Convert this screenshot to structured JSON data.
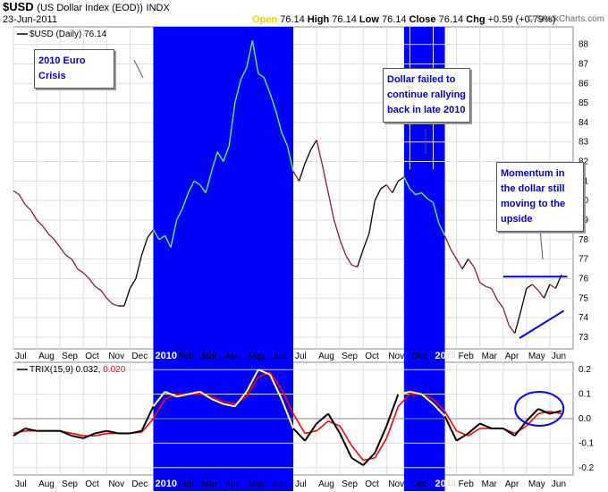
{
  "header": {
    "symbol": "$USD",
    "description": "(US Dollar Index (EOD))",
    "exchange": "INDX",
    "date": "23-Jun-2011",
    "open_label": "Open",
    "open_value": "76.14",
    "high_label": "High",
    "high_value": "76.14",
    "low_label": "Low",
    "low_value": "76.14",
    "close_label": "Close",
    "close_value": "76.14",
    "chg_label": "Chg",
    "chg_value": "+0.59 (+0.79%)",
    "brand": "© StockCharts.com"
  },
  "price_legend": "$USD (Daily) 76.14",
  "trix_legend": {
    "name": "TRIX(15,9) 0.032,",
    "signal": " 0.020"
  },
  "annotations": {
    "euro_crisis": "2010 Euro Crisis",
    "dollar_failed": "Dollar failed to continue rallying back in late 2010",
    "momentum": "Momentum in the dollar still moving to the upside"
  },
  "colors": {
    "highlight": "#0000ff",
    "price_down": "#8b1a3a",
    "price_up": "#000000",
    "price_highlight": "#66ff66",
    "trix": "#000000",
    "signal": "#ff0000",
    "trix_highlight": "#ffff66",
    "trendline": "#0000ff"
  },
  "chart_data": [
    {
      "type": "line",
      "title": "$USD (Daily)",
      "y_axis_ticks": [
        73,
        74,
        75,
        76,
        77,
        78,
        79,
        80,
        81,
        82,
        83,
        84,
        85,
        86,
        87,
        88
      ],
      "ylim": [
        72.4,
        88.9
      ],
      "x_tick_labels": [
        "Jul",
        "Aug",
        "Sep",
        "Oct",
        "Nov",
        "Dec",
        "2010",
        "Feb",
        "Mar",
        "Apr",
        "May",
        "Jun",
        "Jul",
        "Aug",
        "Sep",
        "Oct",
        "Nov",
        "Dec",
        "2011",
        "Feb",
        "Mar",
        "Apr",
        "May",
        "Jun"
      ],
      "grid": true,
      "x_index_range": [
        0,
        24
      ],
      "highlight_ranges": [
        [
          6.0,
          12.0
        ],
        [
          16.75,
          18.5
        ]
      ],
      "series": [
        {
          "x": [
            0,
            0.25,
            0.5,
            0.75,
            1.0,
            1.25,
            1.5,
            1.75,
            2.0,
            2.25,
            2.5,
            2.75,
            3.0,
            3.25,
            3.5,
            3.75,
            4.0,
            4.25,
            4.5,
            4.75,
            5.0,
            5.25,
            5.5,
            5.75,
            6.0,
            6.25,
            6.5,
            6.75,
            7.0,
            7.25,
            7.5,
            7.75,
            8.0,
            8.25,
            8.5,
            8.75,
            9.0,
            9.25,
            9.5,
            9.75,
            10.0,
            10.25,
            10.5,
            10.75,
            11.0,
            11.25,
            11.5,
            11.75,
            12.0,
            12.25,
            12.5,
            12.75,
            13.0,
            13.25,
            13.5,
            13.75,
            14.0,
            14.25,
            14.5,
            14.75,
            15.0,
            15.25,
            15.5,
            15.75,
            16.0,
            16.25,
            16.5,
            16.75,
            17.0,
            17.25,
            17.5,
            17.75,
            18.0,
            18.25,
            18.5,
            18.75,
            19.0,
            19.25,
            19.5,
            19.75,
            20.0,
            20.25,
            20.5,
            20.75,
            21.0,
            21.25,
            21.5,
            21.75,
            22.0,
            22.25,
            22.5,
            22.75,
            23.0,
            23.25,
            23.5
          ],
          "values": [
            80.5,
            80.3,
            79.8,
            79.5,
            79.0,
            78.7,
            78.3,
            78.0,
            77.6,
            77.2,
            77.0,
            76.5,
            76.3,
            76.0,
            75.6,
            75.4,
            75.0,
            74.7,
            74.6,
            74.6,
            75.5,
            76.0,
            77.2,
            78.1,
            78.5,
            78.0,
            78.2,
            77.6,
            79.0,
            79.6,
            80.4,
            81.0,
            80.8,
            80.4,
            81.5,
            82.5,
            82.0,
            82.8,
            85.0,
            86.2,
            86.8,
            88.2,
            86.5,
            86.3,
            85.5,
            84.6,
            83.5,
            82.8,
            81.5,
            81.0,
            81.9,
            82.6,
            83.1,
            81.8,
            80.4,
            79.0,
            78.0,
            77.2,
            76.7,
            76.6,
            77.5,
            78.3,
            80.0,
            80.6,
            80.8,
            80.4,
            81.0,
            81.2,
            80.6,
            80.3,
            80.4,
            80.1,
            79.9,
            78.8,
            78.2,
            77.5,
            77.0,
            76.5,
            77.0,
            76.6,
            75.8,
            75.6,
            75.5,
            74.9,
            74.5,
            73.6,
            73.2,
            74.3,
            75.5,
            75.7,
            75.4,
            75.0,
            75.7,
            75.5,
            76.2
          ]
        }
      ],
      "annotation_labels": [
        "2010 Euro Crisis",
        "Dollar failed to continue rallying back in late 2010",
        "Momentum in the dollar still moving to the upside"
      ]
    },
    {
      "type": "line",
      "title": "TRIX(15,9)",
      "y_axis_ticks": [
        -0.2,
        -0.1,
        0.0,
        0.1,
        0.2
      ],
      "ylim": [
        -0.23,
        0.23
      ],
      "x_tick_labels": [
        "Jul",
        "Aug",
        "Sep",
        "Oct",
        "Nov",
        "Dec",
        "2010",
        "Feb",
        "Mar",
        "Apr",
        "May",
        "Jun",
        "Jul",
        "Aug",
        "Sep",
        "Oct",
        "Nov",
        "Dec",
        "2011",
        "Feb",
        "Mar",
        "Apr",
        "May",
        "Jun"
      ],
      "grid": true,
      "zero_line": 0.0,
      "x_index_range": [
        0,
        24
      ],
      "series": [
        {
          "name": "TRIX(15,9) 0.032",
          "x": [
            0,
            0.5,
            1.0,
            1.5,
            2.0,
            2.5,
            3.0,
            3.5,
            4.0,
            4.5,
            5.0,
            5.5,
            6.0,
            6.5,
            7.0,
            7.5,
            8.0,
            8.5,
            9.0,
            9.5,
            10.0,
            10.5,
            11.0,
            11.5,
            12.0,
            12.5,
            13.0,
            13.5,
            14.0,
            14.5,
            15.0,
            15.5,
            16.0,
            16.5,
            17.0,
            17.5,
            18.0,
            18.5,
            19.0,
            19.5,
            20.0,
            20.5,
            21.0,
            21.5,
            22.0,
            22.5,
            23.0,
            23.5
          ],
          "values": [
            -0.07,
            -0.04,
            -0.05,
            -0.05,
            -0.05,
            -0.07,
            -0.08,
            -0.06,
            -0.05,
            -0.06,
            -0.06,
            -0.05,
            0.05,
            0.11,
            0.09,
            0.1,
            0.11,
            0.08,
            0.06,
            0.05,
            0.11,
            0.2,
            0.18,
            0.08,
            -0.04,
            -0.09,
            -0.02,
            0.02,
            -0.06,
            -0.16,
            -0.19,
            -0.14,
            -0.03,
            0.1,
            0.11,
            0.1,
            0.06,
            0.01,
            -0.09,
            -0.06,
            -0.02,
            -0.04,
            -0.04,
            -0.07,
            -0.01,
            0.04,
            0.02,
            0.032
          ]
        },
        {
          "name": "Signal 0.020",
          "x": [
            0,
            0.5,
            1.0,
            1.5,
            2.0,
            2.5,
            3.0,
            3.5,
            4.0,
            4.5,
            5.0,
            5.5,
            6.0,
            6.5,
            7.0,
            7.5,
            8.0,
            8.5,
            9.0,
            9.5,
            10.0,
            10.5,
            11.0,
            11.5,
            12.0,
            12.5,
            13.0,
            13.5,
            14.0,
            14.5,
            15.0,
            15.5,
            16.0,
            16.5,
            17.0,
            17.5,
            18.0,
            18.5,
            19.0,
            19.5,
            20.0,
            20.5,
            21.0,
            21.5,
            22.0,
            22.5,
            23.0,
            23.5
          ],
          "values": [
            -0.06,
            -0.05,
            -0.05,
            -0.05,
            -0.05,
            -0.06,
            -0.07,
            -0.07,
            -0.06,
            -0.06,
            -0.06,
            -0.055,
            0.0,
            0.08,
            0.1,
            0.1,
            0.1,
            0.09,
            0.07,
            0.06,
            0.09,
            0.17,
            0.19,
            0.12,
            0.02,
            -0.06,
            -0.05,
            -0.01,
            -0.03,
            -0.11,
            -0.17,
            -0.16,
            -0.08,
            0.05,
            0.1,
            0.1,
            0.08,
            0.03,
            -0.05,
            -0.07,
            -0.04,
            -0.04,
            -0.04,
            -0.06,
            -0.03,
            0.02,
            0.03,
            0.02
          ]
        }
      ]
    }
  ]
}
